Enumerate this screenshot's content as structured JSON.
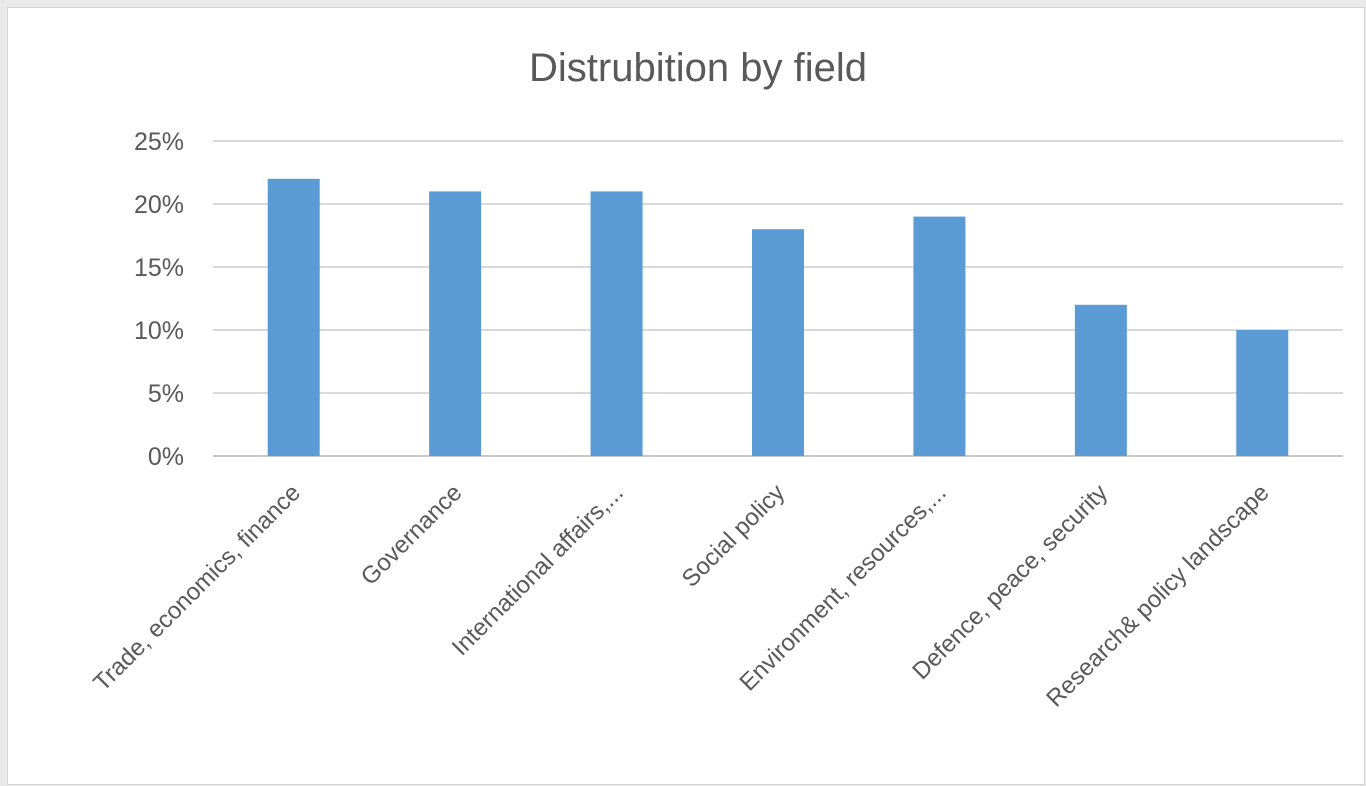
{
  "chart_data": {
    "type": "bar",
    "title": "Distrubition by field",
    "xlabel": "",
    "ylabel": "",
    "categories": [
      "Trade, economics, finance",
      "Governance",
      "International affairs,...",
      "Social policy",
      "Environment, resources,...",
      "Defence, peace, security",
      "Research& policy landscape"
    ],
    "values": [
      22,
      21,
      21,
      18,
      19,
      12,
      10
    ],
    "ylim": [
      0,
      25
    ],
    "y_ticks": [
      0,
      5,
      10,
      15,
      20,
      25
    ],
    "y_tick_labels": [
      "0%",
      "5%",
      "10%",
      "15%",
      "20%",
      "25%"
    ],
    "grid": true,
    "legend": "none",
    "colors": {
      "bar": "#5b9bd5",
      "grid": "#d9d9d9",
      "text": "#595959",
      "title": "#595959"
    }
  }
}
